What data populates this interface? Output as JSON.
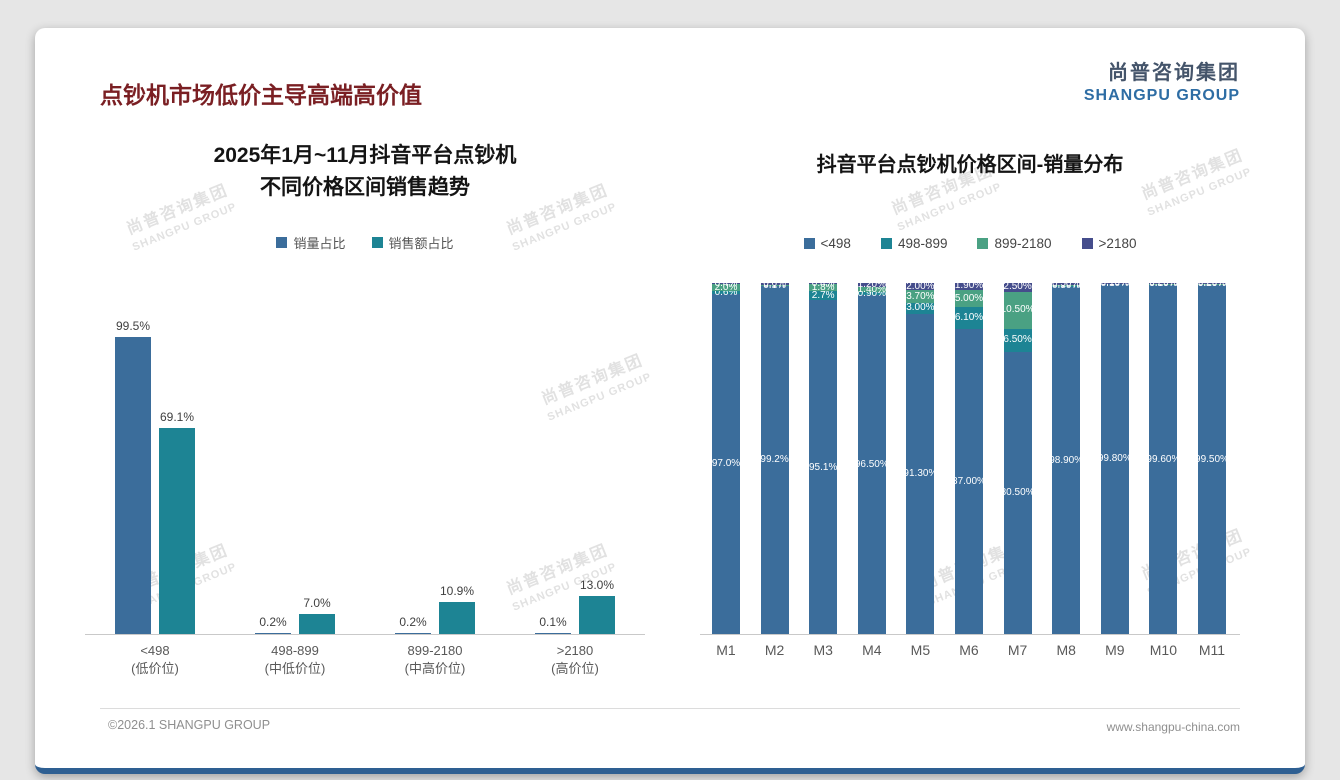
{
  "page": {
    "title": "点钞机市场低价主导高端高价值",
    "footer_left": "©2026.1 SHANGPU GROUP",
    "footer_right": "www.shangpu-china.com"
  },
  "logo": {
    "cn": "尚普咨询集团",
    "en": "SHANGPU GROUP"
  },
  "watermark": {
    "line1": "尚普咨询集团",
    "line2": "SHANGPU GROUP"
  },
  "colors": {
    "blue": "#3b6d9b",
    "teal": "#1d8494",
    "green": "#4aa183",
    "indigo": "#454d8c",
    "title_red": "#7a1f23",
    "accent_bar": "#2e5f92",
    "axis": "#c9c9c9"
  },
  "chart_data": [
    {
      "type": "bar",
      "variant": "grouped",
      "title_lines": [
        "2025年1月~11月抖音平台点钞机",
        "不同价格区间销售趋势"
      ],
      "categories": [
        "<498",
        "498-899",
        "899-2180",
        ">2180"
      ],
      "category_sublabels": [
        "(低价位)",
        "(中低价位)",
        "(中高价位)",
        "(高价位)"
      ],
      "ylim": [
        0,
        100
      ],
      "unit": "%",
      "grid": false,
      "legend_position": "top",
      "series": [
        {
          "name": "销量占比",
          "color_key": "blue",
          "values": [
            99.5,
            0.2,
            0.2,
            0.1
          ],
          "labels": [
            "99.5%",
            "0.2%",
            "0.2%",
            "0.1%"
          ]
        },
        {
          "name": "销售额占比",
          "color_key": "teal",
          "values": [
            69.1,
            7.0,
            10.9,
            13.0
          ],
          "labels": [
            "69.1%",
            "7.0%",
            "10.9%",
            "13.0%"
          ]
        }
      ]
    },
    {
      "type": "bar",
      "variant": "stacked",
      "title": "抖音平台点钞机价格区间-销量分布",
      "categories": [
        "M1",
        "M2",
        "M3",
        "M4",
        "M5",
        "M6",
        "M7",
        "M8",
        "M9",
        "M10",
        "M11"
      ],
      "ylim": [
        0,
        100
      ],
      "unit": "%",
      "grid": false,
      "legend_position": "top",
      "series": [
        {
          "name": "<498",
          "color_key": "blue",
          "values": [
            97.0,
            99.2,
            95.1,
            96.5,
            91.3,
            87.0,
            80.5,
            98.9,
            99.8,
            99.6,
            99.5
          ],
          "labels": [
            "97.0%",
            "99.2%",
            "95.1%",
            "96.50%",
            "91.30%",
            "87.00%",
            "80.50%",
            "98.90%",
            "99.80%",
            "99.60%",
            "99.50%"
          ]
        },
        {
          "name": "498-899",
          "color_key": "teal",
          "values": [
            0.6,
            0.1,
            2.7,
            0.9,
            3.0,
            6.1,
            6.5,
            0.5,
            0.1,
            0.1,
            0.2
          ],
          "labels": [
            "0.6%",
            "0.1%",
            "2.7%",
            "0.90%",
            "3.00%",
            "6.10%",
            "6.50%",
            "0.50%",
            "0.10%",
            "0.10%",
            "0.20%"
          ]
        },
        {
          "name": "899-2180",
          "color_key": "green",
          "values": [
            2.0,
            0.1,
            1.8,
            1.4,
            3.7,
            5.0,
            10.5,
            0.1,
            0.0,
            0.1,
            0.1
          ],
          "labels": [
            "2.0%",
            "0.1%",
            "1.8%",
            "1.40%",
            "3.70%",
            "5.00%",
            "10.50%",
            "0.10%",
            "0.00%",
            "0.10%",
            "0.10%"
          ]
        },
        {
          "name": ">2180",
          "color_key": "indigo",
          "values": [
            0.4,
            0.6,
            0.4,
            1.2,
            2.0,
            1.9,
            2.5,
            0.5,
            0.1,
            0.2,
            0.2
          ],
          "labels": [
            "0.4%",
            "0.6%",
            "0.4%",
            "1.20%",
            "2.00%",
            "1.90%",
            "2.50%",
            "0.50%",
            "0.10%",
            "0.20%",
            "0.20%"
          ]
        }
      ]
    }
  ]
}
